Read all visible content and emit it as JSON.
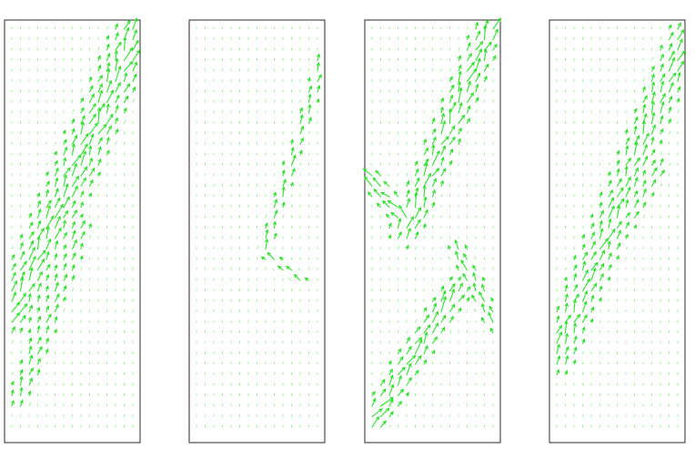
{
  "figure": {
    "panel_count": 4,
    "vector_color": "#22dd22",
    "background_color": "#ffffff",
    "frame_color": "#2a2a2a"
  },
  "panels": [
    {
      "name": "vector-field-panel-1"
    },
    {
      "name": "vector-field-panel-2"
    },
    {
      "name": "vector-field-panel-3"
    },
    {
      "name": "vector-field-panel-4"
    }
  ]
}
